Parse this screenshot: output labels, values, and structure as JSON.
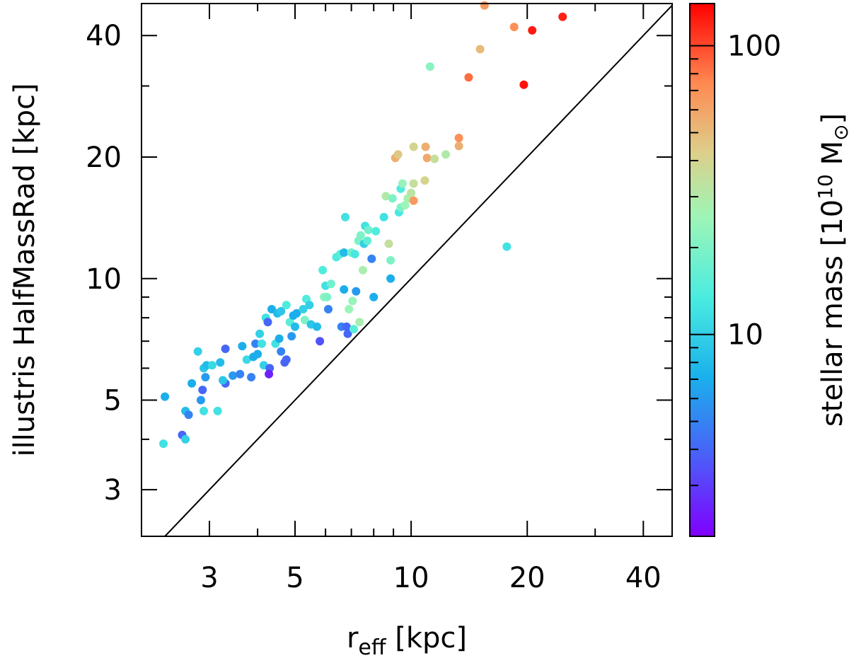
{
  "chart_data": {
    "type": "scatter",
    "xlabel": {
      "main": "r",
      "sub": "eff",
      "unit": " [kpc]"
    },
    "ylabel": "illustris HalfMassRad [kpc]",
    "xscale": "log",
    "yscale": "log",
    "xlim": [
      2.0,
      47.5
    ],
    "ylim": [
      2.3,
      48.0
    ],
    "x_ticks": [
      3,
      5,
      10,
      20,
      40
    ],
    "y_ticks": [
      3,
      5,
      10,
      20,
      40
    ],
    "x_tick_labels": [
      "3",
      "5",
      "10",
      "20",
      "40"
    ],
    "y_tick_labels": [
      "3",
      "5",
      "10",
      "20",
      "40"
    ],
    "reference_line": "y = x",
    "colorbar": {
      "label_pre": "stellar mass [10",
      "label_exp": "10",
      "label_unit": " M",
      "label_sun": "⊙",
      "label_post": "]",
      "scale": "log",
      "range": [
        2.0,
        140
      ],
      "ticks": [
        10,
        100
      ],
      "tick_labels": [
        "10",
        "100"
      ],
      "colormap": "rainbow"
    },
    "points": [
      [
        2.3,
        5.1,
        7
      ],
      [
        2.28,
        3.9,
        12
      ],
      [
        2.55,
        4.1,
        4
      ],
      [
        2.6,
        4.0,
        10
      ],
      [
        2.6,
        4.7,
        8
      ],
      [
        2.65,
        4.6,
        5
      ],
      [
        2.7,
        5.5,
        7
      ],
      [
        2.8,
        6.6,
        10
      ],
      [
        2.85,
        5.0,
        6
      ],
      [
        2.9,
        4.7,
        12
      ],
      [
        2.88,
        5.3,
        4
      ],
      [
        2.9,
        6.0,
        9
      ],
      [
        2.95,
        6.1,
        8
      ],
      [
        2.93,
        5.7,
        6
      ],
      [
        3.05,
        6.1,
        11
      ],
      [
        3.15,
        4.7,
        12
      ],
      [
        3.2,
        6.2,
        8
      ],
      [
        3.3,
        5.5,
        4
      ],
      [
        3.25,
        5.6,
        9
      ],
      [
        3.3,
        6.7,
        4
      ],
      [
        3.45,
        5.75,
        6
      ],
      [
        3.6,
        5.8,
        5
      ],
      [
        3.65,
        6.8,
        7
      ],
      [
        3.75,
        6.3,
        11
      ],
      [
        3.85,
        5.7,
        5
      ],
      [
        3.9,
        6.4,
        7
      ],
      [
        3.95,
        6.9,
        5
      ],
      [
        4.0,
        6.5,
        7
      ],
      [
        4.05,
        7.3,
        10
      ],
      [
        4.1,
        6.9,
        12
      ],
      [
        4.15,
        6.1,
        10
      ],
      [
        4.2,
        8.0,
        12
      ],
      [
        4.25,
        7.8,
        4
      ],
      [
        4.3,
        6.0,
        4
      ],
      [
        4.28,
        5.8,
        2.5
      ],
      [
        4.35,
        8.4,
        7
      ],
      [
        4.45,
        6.9,
        12
      ],
      [
        4.5,
        8.2,
        8
      ],
      [
        4.55,
        7.1,
        7
      ],
      [
        4.6,
        8.3,
        9
      ],
      [
        4.6,
        6.6,
        5
      ],
      [
        4.7,
        6.2,
        4
      ],
      [
        4.75,
        6.3,
        4
      ],
      [
        4.75,
        8.6,
        14
      ],
      [
        4.85,
        7.8,
        15
      ],
      [
        4.95,
        8.1,
        7
      ],
      [
        4.9,
        7.2,
        6
      ],
      [
        5.0,
        7.6,
        8
      ],
      [
        5.05,
        8.2,
        7
      ],
      [
        5.25,
        8.4,
        10
      ],
      [
        5.3,
        7.9,
        20
      ],
      [
        5.35,
        8.9,
        14
      ],
      [
        5.45,
        8.6,
        10
      ],
      [
        5.5,
        7.7,
        9
      ],
      [
        5.7,
        7.6,
        8
      ],
      [
        5.8,
        7.0,
        3.5
      ],
      [
        5.9,
        10.5,
        14
      ],
      [
        5.95,
        9.0,
        22
      ],
      [
        6.0,
        9.6,
        12
      ],
      [
        6.05,
        9.0,
        20
      ],
      [
        6.1,
        8.4,
        5
      ],
      [
        6.2,
        9.7,
        18
      ],
      [
        6.4,
        11.3,
        14
      ],
      [
        6.55,
        11.5,
        15
      ],
      [
        6.6,
        7.6,
        5
      ],
      [
        6.7,
        11.6,
        8
      ],
      [
        6.7,
        9.4,
        7
      ],
      [
        6.75,
        14.2,
        12
      ],
      [
        6.8,
        7.6,
        4
      ],
      [
        6.85,
        7.3,
        4
      ],
      [
        6.9,
        8.4,
        25
      ],
      [
        7.0,
        11.6,
        18
      ],
      [
        7.05,
        8.8,
        24
      ],
      [
        7.1,
        7.5,
        15
      ],
      [
        7.15,
        11.5,
        13
      ],
      [
        7.2,
        9.3,
        6
      ],
      [
        7.3,
        12.4,
        20
      ],
      [
        7.35,
        7.8,
        28
      ],
      [
        7.4,
        12.8,
        20
      ],
      [
        7.5,
        10.5,
        28
      ],
      [
        7.55,
        12.2,
        10
      ],
      [
        7.6,
        13.5,
        12
      ],
      [
        7.7,
        12.4,
        16
      ],
      [
        7.75,
        13.2,
        18
      ],
      [
        7.9,
        11.2,
        5
      ],
      [
        8.0,
        9.0,
        7
      ],
      [
        8.1,
        13.1,
        14
      ],
      [
        8.5,
        14.2,
        12
      ],
      [
        8.6,
        16.0,
        30
      ],
      [
        8.75,
        12.2,
        35
      ],
      [
        8.85,
        10.0,
        7
      ],
      [
        8.85,
        11.1,
        20
      ],
      [
        8.95,
        15.8,
        20
      ],
      [
        9.3,
        14.6,
        13
      ],
      [
        9.4,
        15.0,
        20
      ],
      [
        9.4,
        16.7,
        14
      ],
      [
        9.5,
        17.2,
        24
      ],
      [
        9.65,
        15.2,
        25
      ],
      [
        9.8,
        15.8,
        28
      ],
      [
        10.0,
        16.3,
        32
      ],
      [
        10.15,
        15.6,
        65
      ],
      [
        10.15,
        17.2,
        35
      ],
      [
        10.15,
        21.2,
        40
      ],
      [
        9.1,
        19.9,
        55
      ],
      [
        9.25,
        20.3,
        45
      ],
      [
        10.9,
        21.2,
        55
      ],
      [
        10.85,
        17.5,
        40
      ],
      [
        11.0,
        19.9,
        58
      ],
      [
        11.5,
        19.8,
        35
      ],
      [
        12.3,
        20.3,
        30
      ],
      [
        13.3,
        21.3,
        55
      ],
      [
        13.3,
        22.3,
        70
      ],
      [
        14.1,
        31.5,
        85
      ],
      [
        15.1,
        37.0,
        50
      ],
      [
        15.5,
        47.5,
        65
      ],
      [
        17.7,
        12.0,
        12
      ],
      [
        18.5,
        42.0,
        70
      ],
      [
        19.6,
        30.2,
        130
      ],
      [
        20.6,
        41.2,
        125
      ],
      [
        24.7,
        44.5,
        120
      ],
      [
        11.2,
        33.5,
        22
      ]
    ]
  }
}
